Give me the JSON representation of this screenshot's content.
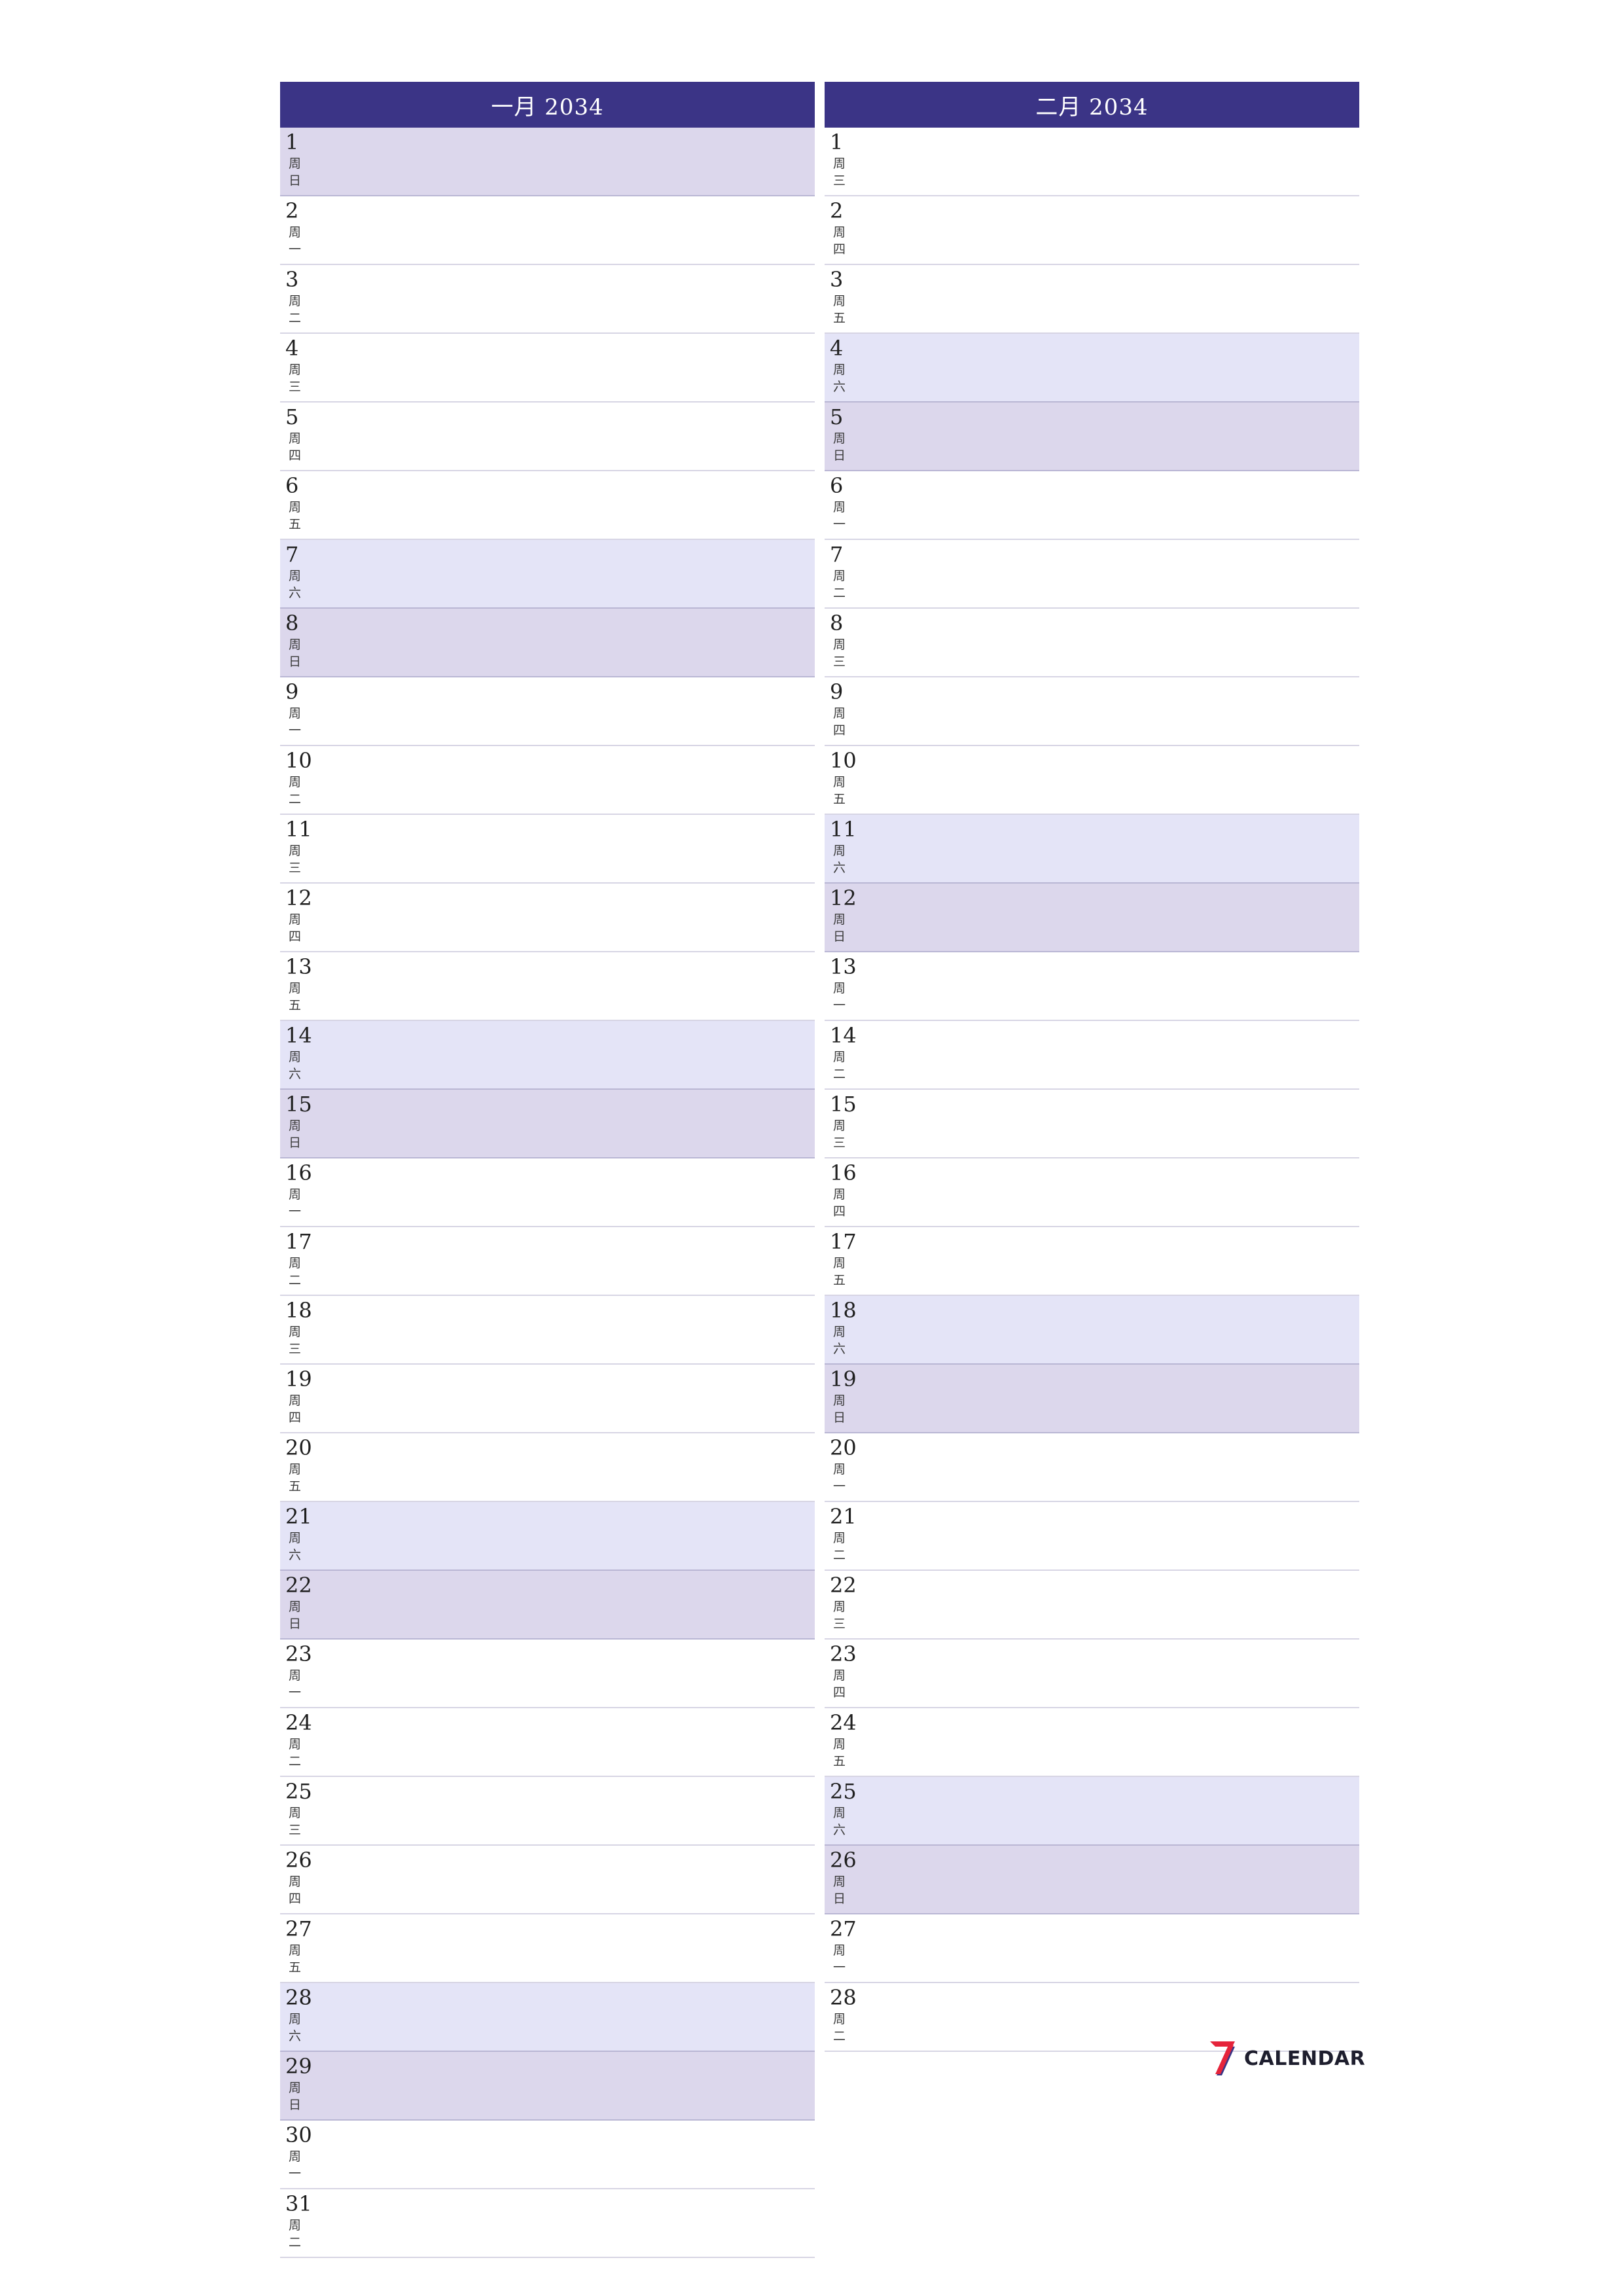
{
  "months": [
    {
      "title": "一月  2034",
      "days": [
        {
          "num": "1",
          "wd": "周日",
          "type": "sun"
        },
        {
          "num": "2",
          "wd": "周一",
          "type": ""
        },
        {
          "num": "3",
          "wd": "周二",
          "type": ""
        },
        {
          "num": "4",
          "wd": "周三",
          "type": ""
        },
        {
          "num": "5",
          "wd": "周四",
          "type": ""
        },
        {
          "num": "6",
          "wd": "周五",
          "type": ""
        },
        {
          "num": "7",
          "wd": "周六",
          "type": "sat"
        },
        {
          "num": "8",
          "wd": "周日",
          "type": "sun"
        },
        {
          "num": "9",
          "wd": "周一",
          "type": ""
        },
        {
          "num": "10",
          "wd": "周二",
          "type": ""
        },
        {
          "num": "11",
          "wd": "周三",
          "type": ""
        },
        {
          "num": "12",
          "wd": "周四",
          "type": ""
        },
        {
          "num": "13",
          "wd": "周五",
          "type": ""
        },
        {
          "num": "14",
          "wd": "周六",
          "type": "sat"
        },
        {
          "num": "15",
          "wd": "周日",
          "type": "sun"
        },
        {
          "num": "16",
          "wd": "周一",
          "type": ""
        },
        {
          "num": "17",
          "wd": "周二",
          "type": ""
        },
        {
          "num": "18",
          "wd": "周三",
          "type": ""
        },
        {
          "num": "19",
          "wd": "周四",
          "type": ""
        },
        {
          "num": "20",
          "wd": "周五",
          "type": ""
        },
        {
          "num": "21",
          "wd": "周六",
          "type": "sat"
        },
        {
          "num": "22",
          "wd": "周日",
          "type": "sun"
        },
        {
          "num": "23",
          "wd": "周一",
          "type": ""
        },
        {
          "num": "24",
          "wd": "周二",
          "type": ""
        },
        {
          "num": "25",
          "wd": "周三",
          "type": ""
        },
        {
          "num": "26",
          "wd": "周四",
          "type": ""
        },
        {
          "num": "27",
          "wd": "周五",
          "type": ""
        },
        {
          "num": "28",
          "wd": "周六",
          "type": "sat"
        },
        {
          "num": "29",
          "wd": "周日",
          "type": "sun"
        },
        {
          "num": "30",
          "wd": "周一",
          "type": ""
        },
        {
          "num": "31",
          "wd": "周二",
          "type": ""
        }
      ]
    },
    {
      "title": "二月  2034",
      "days": [
        {
          "num": "1",
          "wd": "周三",
          "type": ""
        },
        {
          "num": "2",
          "wd": "周四",
          "type": ""
        },
        {
          "num": "3",
          "wd": "周五",
          "type": ""
        },
        {
          "num": "4",
          "wd": "周六",
          "type": "sat"
        },
        {
          "num": "5",
          "wd": "周日",
          "type": "sun"
        },
        {
          "num": "6",
          "wd": "周一",
          "type": ""
        },
        {
          "num": "7",
          "wd": "周二",
          "type": ""
        },
        {
          "num": "8",
          "wd": "周三",
          "type": ""
        },
        {
          "num": "9",
          "wd": "周四",
          "type": ""
        },
        {
          "num": "10",
          "wd": "周五",
          "type": ""
        },
        {
          "num": "11",
          "wd": "周六",
          "type": "sat"
        },
        {
          "num": "12",
          "wd": "周日",
          "type": "sun"
        },
        {
          "num": "13",
          "wd": "周一",
          "type": ""
        },
        {
          "num": "14",
          "wd": "周二",
          "type": ""
        },
        {
          "num": "15",
          "wd": "周三",
          "type": ""
        },
        {
          "num": "16",
          "wd": "周四",
          "type": ""
        },
        {
          "num": "17",
          "wd": "周五",
          "type": ""
        },
        {
          "num": "18",
          "wd": "周六",
          "type": "sat"
        },
        {
          "num": "19",
          "wd": "周日",
          "type": "sun"
        },
        {
          "num": "20",
          "wd": "周一",
          "type": ""
        },
        {
          "num": "21",
          "wd": "周二",
          "type": ""
        },
        {
          "num": "22",
          "wd": "周三",
          "type": ""
        },
        {
          "num": "23",
          "wd": "周四",
          "type": ""
        },
        {
          "num": "24",
          "wd": "周五",
          "type": ""
        },
        {
          "num": "25",
          "wd": "周六",
          "type": "sat"
        },
        {
          "num": "26",
          "wd": "周日",
          "type": "sun"
        },
        {
          "num": "27",
          "wd": "周一",
          "type": ""
        },
        {
          "num": "28",
          "wd": "周二",
          "type": ""
        }
      ]
    }
  ],
  "logo": {
    "text": "CALENDAR",
    "mark": "7",
    "mark_color": "#e5243b",
    "mark_shadow_color": "#3b3486"
  },
  "colors": {
    "header": "#3b3486",
    "saturday": "#e4e4f7",
    "sunday": "#dcd7ec"
  }
}
